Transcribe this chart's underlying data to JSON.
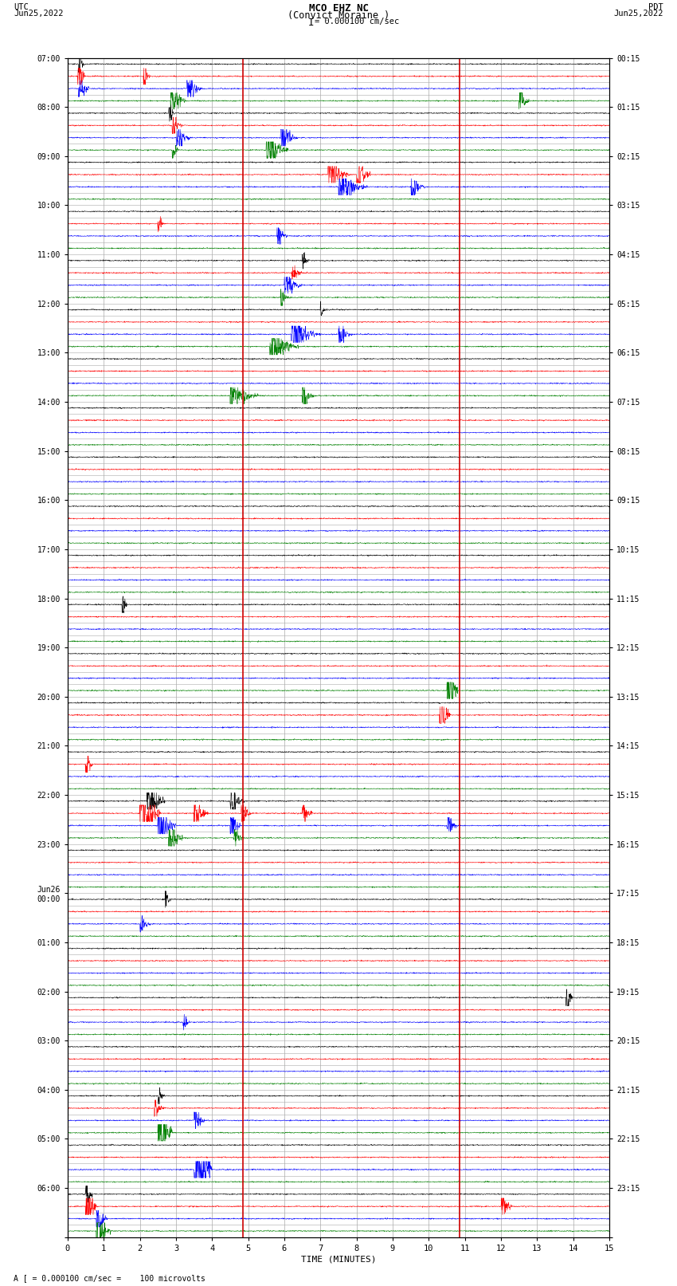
{
  "title_line1": "MCO EHZ NC",
  "title_line2": "(Convict Moraine )",
  "scale_text": "I = 0.000100 cm/sec",
  "left_label": "UTC",
  "left_date": "Jun25,2022",
  "right_label": "PDT",
  "right_date": "Jun25,2022",
  "xlabel": "TIME (MINUTES)",
  "footnote": "A [ = 0.000100 cm/sec =    100 microvolts",
  "bg_color": "#ffffff",
  "trace_colors": [
    "black",
    "red",
    "blue",
    "green"
  ],
  "xmin": 0,
  "xmax": 15,
  "x_ticks": [
    0,
    1,
    2,
    3,
    4,
    5,
    6,
    7,
    8,
    9,
    10,
    11,
    12,
    13,
    14,
    15
  ],
  "grid_color": "#aaaaaa",
  "vline_color": "#cc0000",
  "vline_positions": [
    4.85,
    10.85
  ],
  "n_hour_groups": 24,
  "n_traces_per_group": 4,
  "utc_hour_labels": [
    "07:00",
    "08:00",
    "09:00",
    "10:00",
    "11:00",
    "12:00",
    "13:00",
    "14:00",
    "15:00",
    "16:00",
    "17:00",
    "18:00",
    "19:00",
    "20:00",
    "21:00",
    "22:00",
    "23:00",
    "Jun26\n00:00",
    "01:00",
    "02:00",
    "03:00",
    "04:00",
    "05:00",
    "06:00"
  ],
  "pdt_hour_labels": [
    "00:15",
    "01:15",
    "02:15",
    "03:15",
    "04:15",
    "05:15",
    "06:15",
    "07:15",
    "08:15",
    "09:15",
    "10:15",
    "11:15",
    "12:15",
    "13:15",
    "14:15",
    "15:15",
    "16:15",
    "17:15",
    "18:15",
    "19:15",
    "20:15",
    "21:15",
    "22:15",
    "23:15"
  ]
}
